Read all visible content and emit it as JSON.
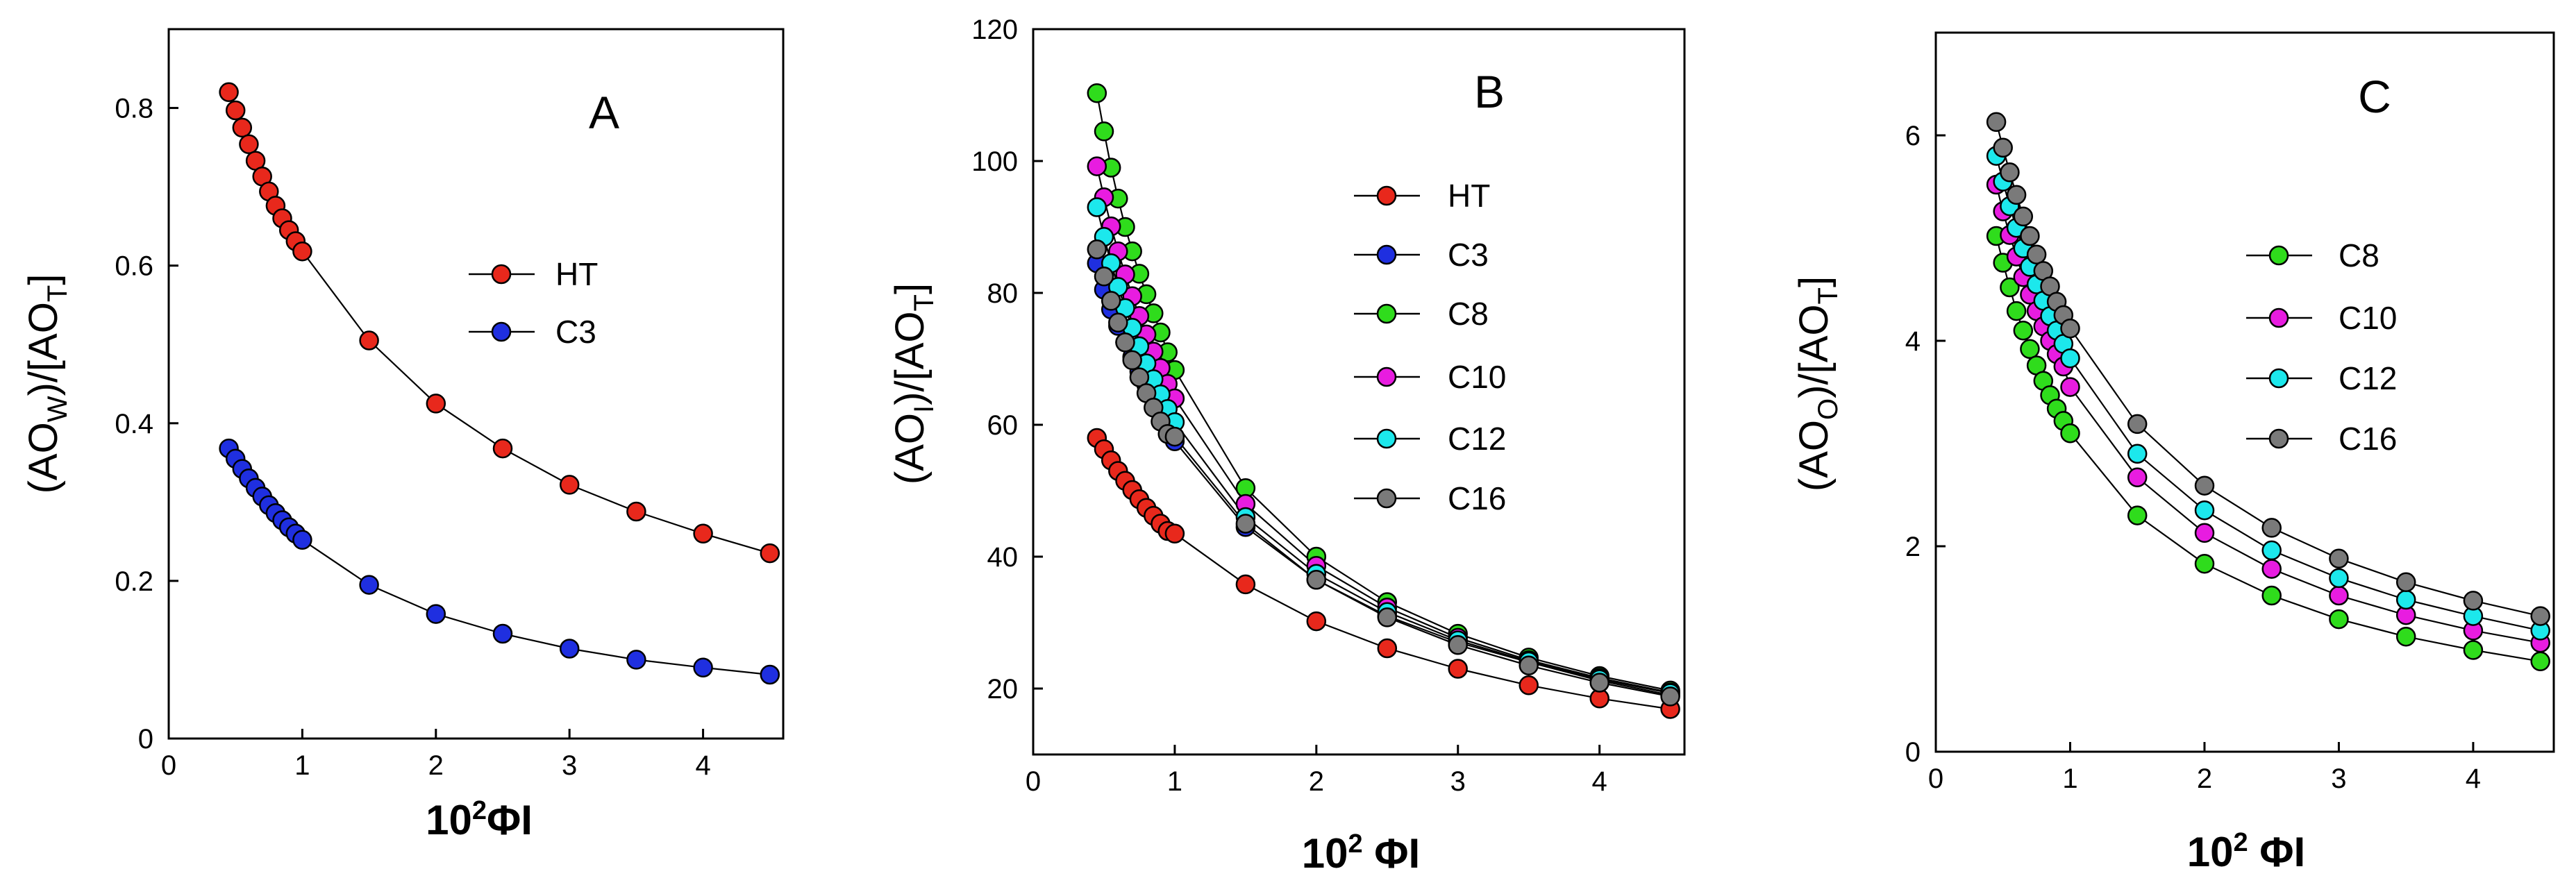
{
  "chart_data": [
    {
      "type": "scatter",
      "panel_label": "A",
      "title": "",
      "xlabel": "10²ΦI",
      "ylabel": "(AOW)/[AOT]",
      "xlim": [
        0,
        4.6
      ],
      "ylim": [
        0,
        0.9
      ],
      "xticks": [
        0,
        1,
        2,
        3,
        4
      ],
      "yticks": [
        0,
        0.2,
        0.4,
        0.6,
        0.8
      ],
      "grid": false,
      "legend_position": "center-right",
      "series": [
        {
          "name": "HT",
          "color": "#e8281c",
          "x": [
            0.45,
            0.5,
            0.55,
            0.6,
            0.65,
            0.7,
            0.75,
            0.8,
            0.85,
            0.9,
            0.95,
            1.0,
            1.5,
            2.0,
            2.5,
            3.0,
            3.5,
            4.0,
            4.5
          ],
          "y": [
            0.82,
            0.797,
            0.775,
            0.754,
            0.733,
            0.713,
            0.694,
            0.676,
            0.66,
            0.645,
            0.631,
            0.618,
            0.505,
            0.425,
            0.368,
            0.322,
            0.288,
            0.26,
            0.235
          ]
        },
        {
          "name": "C3",
          "color": "#1f2fe0",
          "x": [
            0.45,
            0.5,
            0.55,
            0.6,
            0.65,
            0.7,
            0.75,
            0.8,
            0.85,
            0.9,
            0.95,
            1.0,
            1.5,
            2.0,
            2.5,
            3.0,
            3.5,
            4.0,
            4.5
          ],
          "y": [
            0.368,
            0.355,
            0.342,
            0.33,
            0.318,
            0.307,
            0.296,
            0.286,
            0.277,
            0.268,
            0.26,
            0.252,
            0.195,
            0.158,
            0.133,
            0.114,
            0.1,
            0.09,
            0.081
          ]
        }
      ]
    },
    {
      "type": "scatter",
      "panel_label": "B",
      "title": "",
      "xlabel": "10² ΦI",
      "ylabel": "(AOI)/[AOT]",
      "xlim": [
        0,
        4.6
      ],
      "ylim": [
        10,
        120
      ],
      "xticks": [
        0,
        1,
        2,
        3,
        4
      ],
      "yticks": [
        20,
        40,
        60,
        80,
        100,
        120
      ],
      "grid": false,
      "legend_position": "right",
      "series": [
        {
          "name": "HT",
          "color": "#e8281c",
          "x": [
            0.45,
            0.5,
            0.55,
            0.6,
            0.65,
            0.7,
            0.75,
            0.8,
            0.85,
            0.9,
            0.95,
            1.0,
            1.5,
            2.0,
            2.5,
            3.0,
            3.5,
            4.0,
            4.5
          ],
          "y": [
            58,
            56.3,
            54.6,
            53.0,
            51.5,
            50.1,
            48.7,
            47.4,
            46.2,
            45.0,
            43.9,
            43.5,
            35.8,
            30.2,
            26.1,
            23.0,
            20.5,
            18.5,
            16.9
          ]
        },
        {
          "name": "C3",
          "color": "#1f2fe0",
          "x": [
            0.45,
            0.5,
            0.55,
            0.6,
            0.65,
            0.7,
            0.75,
            0.8,
            0.85,
            0.9,
            0.95,
            1.0,
            1.5,
            2.0,
            2.5,
            3.0,
            3.5,
            4.0,
            4.5
          ],
          "y": [
            84.5,
            80.5,
            77.5,
            75.0,
            72.5,
            70.3,
            68.1,
            66.0,
            64.0,
            62.0,
            60.0,
            57.5,
            44.5,
            36.5,
            31.0,
            27.0,
            24.0,
            21.2,
            19.0
          ]
        },
        {
          "name": "C8",
          "color": "#2fdc1c",
          "x": [
            0.45,
            0.5,
            0.55,
            0.6,
            0.65,
            0.7,
            0.75,
            0.8,
            0.85,
            0.9,
            0.95,
            1.0,
            1.5,
            2.0,
            2.5,
            3.0,
            3.5,
            4.0,
            4.5
          ],
          "y": [
            110.3,
            104.5,
            99.0,
            94.3,
            90.0,
            86.3,
            82.9,
            79.8,
            76.9,
            74.0,
            71.0,
            68.3,
            50.4,
            40.0,
            33.1,
            28.3,
            24.7,
            21.9,
            19.7
          ]
        },
        {
          "name": "C10",
          "color": "#e81ce0",
          "x": [
            0.45,
            0.5,
            0.55,
            0.6,
            0.65,
            0.7,
            0.75,
            0.8,
            0.85,
            0.9,
            0.95,
            1.0,
            1.5,
            2.0,
            2.5,
            3.0,
            3.5,
            4.0,
            4.5
          ],
          "y": [
            99.2,
            94.5,
            90.1,
            86.3,
            82.8,
            79.5,
            76.5,
            73.7,
            71.1,
            68.6,
            66.2,
            64.0,
            48.0,
            38.6,
            32.3,
            27.7,
            24.3,
            21.6,
            19.4
          ]
        },
        {
          "name": "C12",
          "color": "#1ce8ec",
          "x": [
            0.45,
            0.5,
            0.55,
            0.6,
            0.65,
            0.7,
            0.75,
            0.8,
            0.85,
            0.9,
            0.95,
            1.0,
            1.5,
            2.0,
            2.5,
            3.0,
            3.5,
            4.0,
            4.5
          ],
          "y": [
            93.0,
            88.5,
            84.5,
            80.9,
            77.7,
            74.7,
            71.9,
            69.3,
            66.9,
            64.6,
            62.4,
            60.4,
            46.0,
            37.4,
            31.6,
            27.3,
            24.1,
            21.4,
            19.3
          ]
        },
        {
          "name": "C16",
          "color": "#7a7a7a",
          "x": [
            0.45,
            0.5,
            0.55,
            0.6,
            0.65,
            0.7,
            0.75,
            0.8,
            0.85,
            0.9,
            0.95,
            1.0,
            1.5,
            2.0,
            2.5,
            3.0,
            3.5,
            4.0,
            4.5
          ],
          "y": [
            86.6,
            82.5,
            78.8,
            75.5,
            72.5,
            69.8,
            67.2,
            64.8,
            62.6,
            60.5,
            58.6,
            58.2,
            45.0,
            36.5,
            30.8,
            26.6,
            23.5,
            20.9,
            18.8
          ]
        }
      ]
    },
    {
      "type": "scatter",
      "panel_label": "C",
      "title": "",
      "xlabel": "10² ΦI",
      "ylabel": "(AOO)/[AOT]",
      "xlim": [
        0,
        4.6
      ],
      "ylim": [
        0,
        7
      ],
      "xticks": [
        0,
        1,
        2,
        3,
        4
      ],
      "yticks": [
        0,
        2,
        4,
        6
      ],
      "grid": false,
      "legend_position": "right",
      "series": [
        {
          "name": "C8",
          "color": "#2fdc1c",
          "x": [
            0.45,
            0.5,
            0.55,
            0.6,
            0.65,
            0.7,
            0.75,
            0.8,
            0.85,
            0.9,
            0.95,
            1.0,
            1.5,
            2.0,
            2.5,
            3.0,
            3.5,
            4.0,
            4.5
          ],
          "y": [
            5.02,
            4.76,
            4.52,
            4.29,
            4.1,
            3.92,
            3.76,
            3.61,
            3.47,
            3.34,
            3.22,
            3.1,
            2.3,
            1.83,
            1.52,
            1.29,
            1.12,
            0.99,
            0.88
          ]
        },
        {
          "name": "C10",
          "color": "#e81ce0",
          "x": [
            0.45,
            0.5,
            0.55,
            0.6,
            0.65,
            0.7,
            0.75,
            0.8,
            0.85,
            0.9,
            0.95,
            1.0,
            1.5,
            2.0,
            2.5,
            3.0,
            3.5,
            4.0,
            4.5
          ],
          "y": [
            5.52,
            5.26,
            5.03,
            4.82,
            4.62,
            4.45,
            4.29,
            4.14,
            4.0,
            3.87,
            3.75,
            3.55,
            2.67,
            2.13,
            1.78,
            1.52,
            1.33,
            1.18,
            1.06
          ]
        },
        {
          "name": "C12",
          "color": "#1ce8ec",
          "x": [
            0.45,
            0.5,
            0.55,
            0.6,
            0.65,
            0.7,
            0.75,
            0.8,
            0.85,
            0.9,
            0.95,
            1.0,
            1.5,
            2.0,
            2.5,
            3.0,
            3.5,
            4.0,
            4.5
          ],
          "y": [
            5.8,
            5.55,
            5.31,
            5.1,
            4.9,
            4.72,
            4.55,
            4.39,
            4.24,
            4.1,
            3.97,
            3.83,
            2.9,
            2.35,
            1.96,
            1.69,
            1.48,
            1.32,
            1.18
          ]
        },
        {
          "name": "C16",
          "color": "#7a7a7a",
          "x": [
            0.45,
            0.5,
            0.55,
            0.6,
            0.65,
            0.7,
            0.75,
            0.8,
            0.85,
            0.9,
            0.95,
            1.0,
            1.5,
            2.0,
            2.5,
            3.0,
            3.5,
            4.0,
            4.5
          ],
          "y": [
            6.13,
            5.88,
            5.64,
            5.42,
            5.21,
            5.02,
            4.84,
            4.68,
            4.53,
            4.38,
            4.25,
            4.12,
            3.19,
            2.59,
            2.18,
            1.88,
            1.65,
            1.47,
            1.32
          ]
        }
      ]
    }
  ]
}
